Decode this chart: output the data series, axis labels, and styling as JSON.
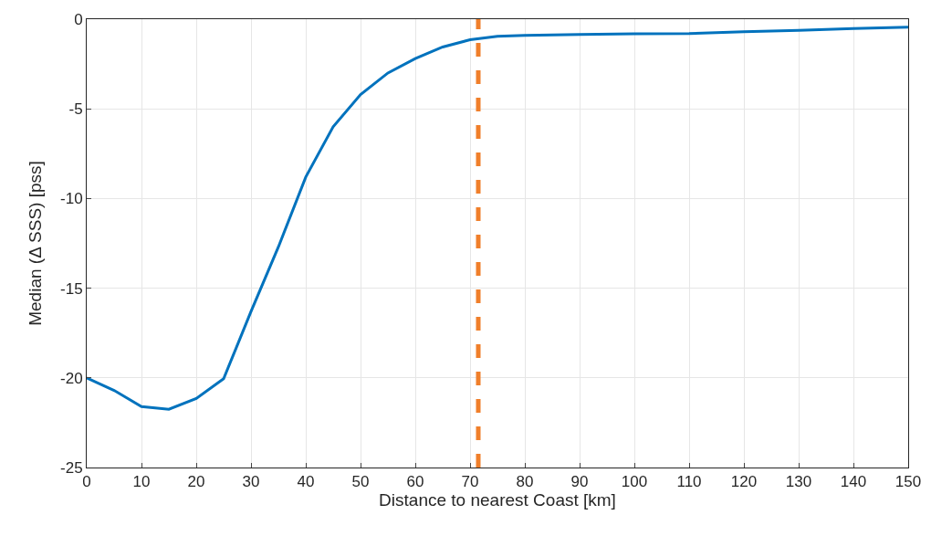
{
  "chart_data": {
    "type": "line",
    "xlabel": "Distance to nearest Coast [km]",
    "ylabel": "Median (Δ SSS) [pss]",
    "x": [
      0,
      5,
      10,
      15,
      20,
      25,
      30,
      35,
      40,
      45,
      50,
      55,
      60,
      65,
      70,
      75,
      80,
      90,
      100,
      110,
      120,
      130,
      140,
      150
    ],
    "series": [
      {
        "color": "#0072bd",
        "values": [
          -20,
          -20.7,
          -21.6,
          -21.75,
          -21.15,
          -20.05,
          -16.3,
          -12.7,
          -8.8,
          -6.0,
          -4.2,
          -3.0,
          -2.2,
          -1.55,
          -1.15,
          -0.95,
          -0.9,
          -0.85,
          -0.82,
          -0.8,
          -0.7,
          -0.62,
          -0.52,
          -0.45
        ]
      }
    ],
    "ref_lines": [
      {
        "axis": "x",
        "value": 71.5,
        "color": "#f07f2a",
        "line_style": "dashed"
      }
    ],
    "xlim": [
      0,
      150
    ],
    "xticks": [
      0,
      10,
      20,
      30,
      40,
      50,
      60,
      70,
      80,
      90,
      100,
      110,
      120,
      130,
      140,
      150
    ],
    "ylim": [
      -25,
      0
    ],
    "yticks": [
      -25,
      -20,
      -15,
      -10,
      -5,
      0
    ],
    "grid": true,
    "legend": false
  }
}
